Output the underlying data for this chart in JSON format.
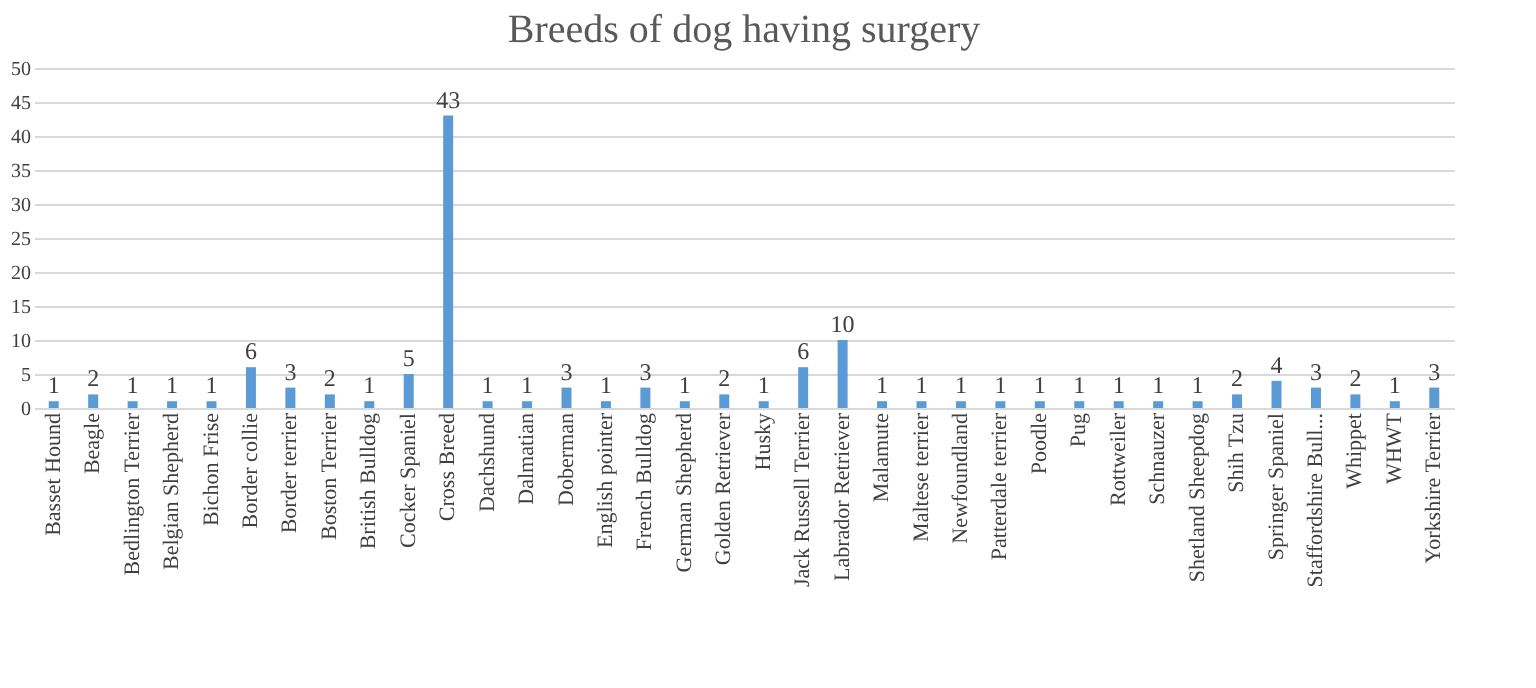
{
  "chart_data": {
    "type": "bar",
    "title": "Breeds of dog having surgery",
    "categories": [
      "Basset Hound",
      "Beagle",
      "Bedlington Terrier",
      "Belgian Shepherd",
      "Bichon Frise",
      "Border collie",
      "Border terrier",
      "Boston Terrier",
      "British Bulldog",
      "Cocker Spaniel",
      "Cross Breed",
      "Dachshund",
      "Dalmatian",
      "Doberman",
      "English pointer",
      "French Bulldog",
      "German Shepherd",
      "Golden Retriever",
      "Husky",
      "Jack Russell Terrier",
      "Labrador Retriever",
      "Malamute",
      "Maltese terrier",
      "Newfoundland",
      "Patterdale terrier",
      "Poodle",
      "Pug",
      "Rottweiler",
      "Schnauzer",
      "Shetland Sheepdog",
      "Shih Tzu",
      "Springer Spaniel",
      "Staffordshire Bull...",
      "Whippet",
      "WHWT",
      "Yorkshire Terrier"
    ],
    "values": [
      1,
      2,
      1,
      1,
      1,
      6,
      3,
      2,
      1,
      5,
      43,
      1,
      1,
      3,
      1,
      3,
      1,
      2,
      1,
      6,
      10,
      1,
      1,
      1,
      1,
      1,
      1,
      1,
      1,
      1,
      2,
      4,
      3,
      2,
      1,
      3
    ],
    "color": "#5b9bd5",
    "ylim": [
      0,
      50
    ],
    "yticks": [
      0,
      5,
      10,
      15,
      20,
      25,
      30,
      35,
      40,
      45,
      50
    ],
    "grid": "y",
    "data_labels": true
  }
}
